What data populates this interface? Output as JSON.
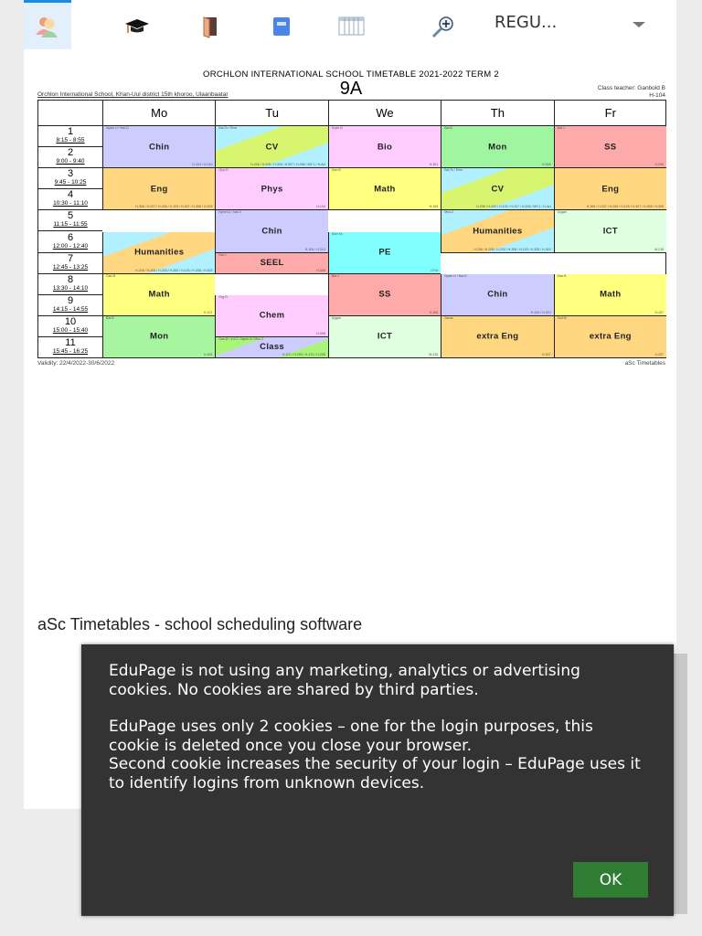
{
  "toolbar": {
    "icons": [
      "teachers-icon",
      "graduation-cap-icon",
      "door-icon",
      "book-icon",
      "timetable-icon",
      "zoom-in-icon"
    ],
    "select_value": "REGU..."
  },
  "timetable": {
    "title": "ORCHLON INTERNATIONAL SCHOOL TIMETABLE 2021-2022 TERM 2",
    "class_name": "9A",
    "school": "Orchlon International School, Khan-Uul district 15th khoroo, Ulaanbaatar",
    "class_teacher": "Class teacher: Ganbold B",
    "room": "H-104",
    "days": [
      "Mo",
      "Tu",
      "We",
      "Th",
      "Fr"
    ],
    "periods": [
      {
        "n": "1",
        "time": "8:15 - 8:55"
      },
      {
        "n": "2",
        "time": "9:00 - 9:40"
      },
      {
        "n": "3",
        "time": "9:45 - 10:25"
      },
      {
        "n": "4",
        "time": "10:30 - 11:10"
      },
      {
        "n": "5",
        "time": "11:15 - 11:55"
      },
      {
        "n": "6",
        "time": "12:00 - 12:40"
      },
      {
        "n": "7",
        "time": "12:45 - 13:25"
      },
      {
        "n": "8",
        "time": "13:30 - 14:10"
      },
      {
        "n": "9",
        "time": "14:15 - 14:55"
      },
      {
        "n": "10",
        "time": "15:00 - 15:40"
      },
      {
        "n": "11",
        "time": "15:45 - 16:25"
      }
    ],
    "lessons": [
      {
        "day": 0,
        "start": 1,
        "span": 2,
        "subject": "Chin",
        "color": "#ccccff",
        "teacher": "Nyam.U / Nar.D",
        "room": "H-104 / H-210"
      },
      {
        "day": 0,
        "start": 3,
        "span": 2,
        "subject": "Eng",
        "color": "#ffd780",
        "teacher": "",
        "room": "H-306 / H-207 / H-206 / H-103 / H-307 / H-308 / H-309"
      },
      {
        "day": 0,
        "start": 6,
        "span": 2,
        "subject": "Humanities",
        "color": "#ffd780",
        "color2": "#b0f0ff",
        "teacher": "",
        "room": "H-206 / H-208 / H-203 / H-306 / H-103 / H-308 / H-309"
      },
      {
        "day": 0,
        "start": 8,
        "span": 2,
        "subject": "Math",
        "color": "#ffff80",
        "teacher": "Gan.B",
        "room": "H-107"
      },
      {
        "day": 0,
        "start": 10,
        "span": 2,
        "subject": "Mon",
        "color": "#a8f5a0",
        "teacher": "Bat.B",
        "room": "H-305"
      },
      {
        "day": 1,
        "start": 1,
        "span": 2,
        "subject": "CV",
        "color": "#d8f570",
        "color2": "#b0f0ff",
        "teacher": "Bat.Ts / Ener",
        "room": "H-206 / H-209 / H-306 / H-307 / H-308 / MS 1 / H-Art"
      },
      {
        "day": 1,
        "start": 3,
        "span": 2,
        "subject": "Phys",
        "color": "#ffccff",
        "teacher": "Oyu.O",
        "room": "H-104"
      },
      {
        "day": 1,
        "start": 5,
        "span": 2,
        "subject": "Chin",
        "color": "#ccccff",
        "teacher": "Nyam.U / Nar.D",
        "room": "H-104 / H-210"
      },
      {
        "day": 1,
        "start": 7,
        "span": 1,
        "subject": "SEEL",
        "color": "#ffaaaa",
        "teacher": "Bat.J",
        "room": "H-306"
      },
      {
        "day": 1,
        "start": 9,
        "span": 2,
        "subject": "Chem",
        "color": "#ffccff",
        "teacher": "Org.R",
        "room": "H-308"
      },
      {
        "day": 1,
        "start": 11,
        "span": 1,
        "subject": "Class",
        "color": "#ccccff",
        "color2": "#a8f57a",
        "teacher": "Gan.B / Vd.O / Nyam.A / Mun.Z",
        "room": "H-107 / H-205 / H-210 / H-208"
      },
      {
        "day": 2,
        "start": 1,
        "span": 2,
        "subject": "Bio",
        "color": "#ffccff",
        "teacher": "Uyan.N",
        "room": "H-301"
      },
      {
        "day": 2,
        "start": 3,
        "span": 2,
        "subject": "Math",
        "color": "#ffff80",
        "teacher": "Gan.B",
        "room": "H-106"
      },
      {
        "day": 2,
        "start": 6,
        "span": 2,
        "subject": "PE",
        "color": "#80ffff",
        "teacher": "Mun.Kh",
        "room": "GYM"
      },
      {
        "day": 2,
        "start": 8,
        "span": 2,
        "subject": "SS",
        "color": "#ffaaaa",
        "teacher": "Bat.J",
        "room": "H-306"
      },
      {
        "day": 2,
        "start": 10,
        "span": 2,
        "subject": "ICT",
        "color": "#e0ffe0",
        "teacher": "Uygan",
        "room": "M-218"
      },
      {
        "day": 3,
        "start": 1,
        "span": 2,
        "subject": "Mon",
        "color": "#a0f5a0",
        "teacher": "Bat.B",
        "room": "H-305"
      },
      {
        "day": 3,
        "start": 3,
        "span": 2,
        "subject": "CV",
        "color": "#d8f570",
        "color2": "#b0f0ff",
        "teacher": "Bat.Ts / Ener",
        "room": "H-208 / H-209 / H-103 / H-207 / H-206 / MS 1 / H-Art"
      },
      {
        "day": 3,
        "start": 5,
        "span": 2,
        "subject": "Humanities",
        "color": "#ffd780",
        "color2": "#b0f0ff",
        "teacher": "Mun.Z",
        "room": "H-206 / H-208 / H-203 / H-306 / H-103 / H-308 / H-309"
      },
      {
        "day": 3,
        "start": 8,
        "span": 2,
        "subject": "Chin",
        "color": "#ccccff",
        "teacher": "Nyam.U / Nar.D",
        "room": "H-104 / H-210"
      },
      {
        "day": 3,
        "start": 10,
        "span": 2,
        "subject": "extra Eng",
        "color": "#ffd780",
        "teacher": "Saraa",
        "room": "H-307"
      },
      {
        "day": 4,
        "start": 1,
        "span": 2,
        "subject": "SS",
        "color": "#ffaaaa",
        "teacher": "Bat.J",
        "room": "H-206"
      },
      {
        "day": 4,
        "start": 3,
        "span": 2,
        "subject": "Eng",
        "color": "#ffd780",
        "teacher": "",
        "room": "H-306 / H-207 / H-206 / H-103 / H-307 / H-308 / H-309"
      },
      {
        "day": 4,
        "start": 5,
        "span": 2,
        "subject": "ICT",
        "color": "#e0ffe0",
        "teacher": "Uygan",
        "room": "M-218"
      },
      {
        "day": 4,
        "start": 8,
        "span": 2,
        "subject": "Math",
        "color": "#ffff80",
        "teacher": "Gan.B",
        "room": "H-107"
      },
      {
        "day": 4,
        "start": 10,
        "span": 2,
        "subject": "extra Eng",
        "color": "#ffd780",
        "teacher": "Soh.M",
        "room": "H-307"
      }
    ],
    "validity": "Validity: 22/4/2022-30/6/2022",
    "credit": "aSc Timetables"
  },
  "footer": "aSc Timetables - school scheduling software",
  "cookie_dialog": {
    "p1": "EduPage is not using any marketing, analytics or advertising cookies. No cookies are shared by third parties.",
    "p2": "EduPage uses only 2 cookies – one for the login purposes, this cookie is deleted once you close your browser.",
    "p3": "Second cookie increases the security of your login – EduPage uses it to identify logins from unknown devices.",
    "ok_label": "OK",
    "ok_color": "#2e7d32"
  }
}
